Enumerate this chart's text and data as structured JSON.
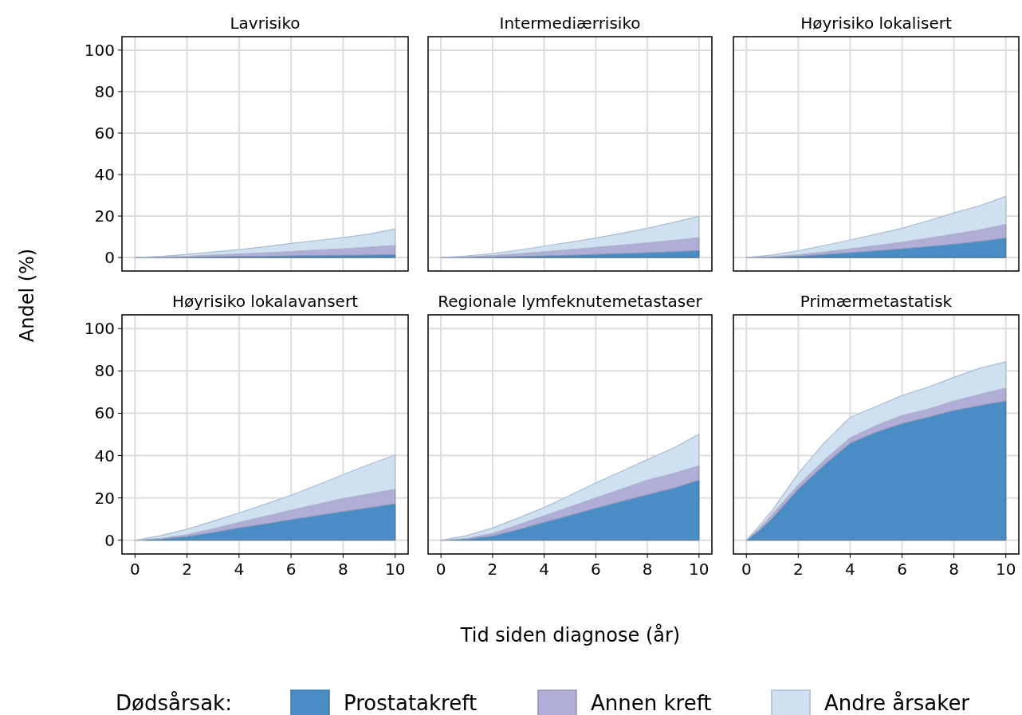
{
  "chart_data": [
    {
      "type": "area",
      "title": "Lavrisiko",
      "ylabel": "Andel (%)",
      "legend_title": "Dødsårsak:",
      "legend": "bottom",
      "stacked": true,
      "grid": true,
      "tick_labels": "y",
      "xlim": [
        -0.5,
        10.5
      ],
      "ylim": [
        -6.5,
        106.5
      ],
      "xticks": [
        0,
        2,
        4,
        6,
        8,
        10
      ],
      "yticks": [
        0,
        20,
        40,
        60,
        80,
        100
      ],
      "x": [
        0,
        1,
        2,
        3,
        4,
        5,
        6,
        7,
        8,
        9,
        10
      ],
      "series": [
        {
          "name": "Prostatakreft",
          "color": "#4a8cc4",
          "values": [
            0,
            0.1,
            0.2,
            0.4,
            0.5,
            0.6,
            0.8,
            1.0,
            1.1,
            1.2,
            1.4
          ]
        },
        {
          "name": "Annen kreft",
          "color": "#b0aed6",
          "values": [
            0,
            0.2,
            0.4,
            0.8,
            1.2,
            1.7,
            2.1,
            2.6,
            3.1,
            3.8,
            4.5
          ]
        },
        {
          "name": "Andre årsaker",
          "color": "#cfe0f1",
          "values": [
            0,
            0.3,
            0.9,
            1.5,
            2.1,
            2.9,
            3.9,
            4.6,
            5.4,
            6.3,
            7.9
          ]
        }
      ]
    },
    {
      "type": "area",
      "title": "Intermediærrisiko",
      "stacked": true,
      "grid": true,
      "tick_labels": false,
      "xlim": [
        -0.5,
        10.5
      ],
      "ylim": [
        -6.5,
        106.5
      ],
      "xticks": [
        0,
        2,
        4,
        6,
        8,
        10
      ],
      "yticks": [
        0,
        20,
        40,
        60,
        80,
        100
      ],
      "x": [
        0,
        1,
        2,
        3,
        4,
        5,
        6,
        7,
        8,
        9,
        10
      ],
      "series": [
        {
          "color": "#4a8cc4",
          "values": [
            0,
            0.1,
            0.3,
            0.5,
            0.8,
            1.1,
            1.5,
            1.9,
            2.3,
            2.8,
            3.3
          ]
        },
        {
          "color": "#b0aed6",
          "values": [
            0,
            0.3,
            0.7,
            1.3,
            2.0,
            2.7,
            3.4,
            4.1,
            4.8,
            5.5,
            6.3
          ]
        },
        {
          "color": "#cfe0f1",
          "values": [
            0,
            0.4,
            0.9,
            1.8,
            2.7,
            3.6,
            4.5,
            5.7,
            7.0,
            8.6,
            10.3
          ]
        }
      ]
    },
    {
      "type": "area",
      "title": "Høyrisiko lokalisert",
      "stacked": true,
      "grid": true,
      "tick_labels": false,
      "xlim": [
        -0.5,
        10.5
      ],
      "ylim": [
        -6.5,
        106.5
      ],
      "xticks": [
        0,
        2,
        4,
        6,
        8,
        10
      ],
      "yticks": [
        0,
        20,
        40,
        60,
        80,
        100
      ],
      "x": [
        0,
        1,
        2,
        3,
        4,
        5,
        6,
        7,
        8,
        9,
        10
      ],
      "series": [
        {
          "color": "#4a8cc4",
          "values": [
            0,
            0.2,
            0.6,
            1.4,
            2.3,
            3.2,
            4.2,
            5.3,
            6.4,
            7.8,
            9.4
          ]
        },
        {
          "color": "#b0aed6",
          "values": [
            0,
            0.3,
            0.7,
            1.3,
            1.9,
            2.6,
            3.2,
            4.0,
            4.9,
            5.6,
            6.6
          ]
        },
        {
          "color": "#cfe0f1",
          "values": [
            0,
            0.7,
            2.0,
            3.1,
            4.3,
            5.4,
            6.7,
            8.4,
            10.2,
            11.6,
            13.5
          ]
        }
      ]
    },
    {
      "type": "area",
      "title": "Høyrisiko lokalavansert",
      "stacked": true,
      "grid": true,
      "xlim": [
        -0.5,
        10.5
      ],
      "ylim": [
        -6.5,
        106.5
      ],
      "xticks": [
        0,
        2,
        4,
        6,
        8,
        10
      ],
      "yticks": [
        0,
        20,
        40,
        60,
        80,
        100
      ],
      "x": [
        0,
        1,
        2,
        3,
        4,
        5,
        6,
        7,
        8,
        9,
        10
      ],
      "series": [
        {
          "color": "#4a8cc4",
          "values": [
            0,
            0.6,
            1.7,
            3.6,
            5.8,
            7.7,
            9.7,
            11.6,
            13.5,
            15.3,
            17.2
          ]
        },
        {
          "color": "#b0aed6",
          "values": [
            0,
            0.3,
            0.9,
            1.8,
            2.6,
            3.6,
            4.5,
            5.4,
            6.2,
            6.6,
            6.9
          ]
        },
        {
          "color": "#cfe0f1",
          "values": [
            0,
            1.3,
            2.6,
            3.6,
            4.5,
            5.7,
            7.1,
            9.1,
            11.3,
            13.9,
            16.2
          ]
        }
      ]
    },
    {
      "type": "area",
      "title": "Regionale lymfeknutemetastaser",
      "xlabel": "Tid siden diagnose (år)",
      "stacked": true,
      "grid": true,
      "tick_labels": "x",
      "xlim": [
        -0.5,
        10.5
      ],
      "ylim": [
        -6.5,
        106.5
      ],
      "xticks": [
        0,
        2,
        4,
        6,
        8,
        10
      ],
      "yticks": [
        0,
        20,
        40,
        60,
        80,
        100
      ],
      "x": [
        0,
        1,
        2,
        3,
        4,
        5,
        6,
        7,
        8,
        9,
        10
      ],
      "series": [
        {
          "color": "#4a8cc4",
          "values": [
            0,
            0.5,
            1.9,
            5.0,
            8.4,
            11.7,
            15.1,
            18.3,
            21.5,
            24.5,
            28.4
          ]
        },
        {
          "color": "#b0aed6",
          "values": [
            0,
            0.4,
            1.3,
            2.3,
            3.2,
            4.1,
            4.9,
            5.9,
            6.9,
            7.0,
            6.8
          ]
        },
        {
          "color": "#cfe0f1",
          "values": [
            0,
            1.3,
            2.6,
            3.2,
            3.9,
            5.4,
            7.1,
            8.4,
            9.7,
            12.0,
            14.9
          ]
        }
      ]
    },
    {
      "type": "area",
      "title": "Primærmetastatisk",
      "stacked": true,
      "grid": true,
      "tick_labels": "x",
      "xlim": [
        -0.5,
        10.5
      ],
      "ylim": [
        -6.5,
        106.5
      ],
      "xticks": [
        0,
        2,
        4,
        6,
        8,
        10
      ],
      "yticks": [
        0,
        20,
        40,
        60,
        80,
        100
      ],
      "x": [
        0,
        0.5,
        1,
        2,
        3,
        4,
        5,
        6,
        7,
        8,
        9,
        10
      ],
      "series": [
        {
          "color": "#4a8cc4",
          "values": [
            0,
            4.5,
            10.3,
            24.1,
            35.5,
            45.8,
            51.0,
            55.1,
            58.1,
            61.3,
            63.6,
            65.8
          ]
        },
        {
          "color": "#b0aed6",
          "values": [
            0,
            1.0,
            2.0,
            2.0,
            2.3,
            2.6,
            3.2,
            3.9,
            3.8,
            4.5,
            5.4,
            6.1
          ]
        },
        {
          "color": "#cfe0f1",
          "values": [
            0,
            1.3,
            1.9,
            5.5,
            8.2,
            9.7,
            9.0,
            9.4,
            10.4,
            11.2,
            12.3,
            12.4
          ]
        }
      ]
    }
  ]
}
